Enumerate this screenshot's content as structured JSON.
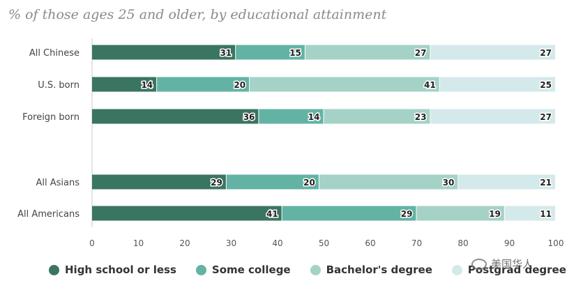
{
  "subtitle": "% of those ages 25 and older, by educational attainment",
  "watermark": "美国华人",
  "chart_data": {
    "type": "bar",
    "orientation": "horizontal",
    "stacked": true,
    "title": "% of those ages 25 and older, by educational attainment",
    "categories": [
      "All Chinese",
      "U.S. born",
      "Foreign born",
      "All Asians",
      "All Americans"
    ],
    "series": [
      {
        "name": "High school or less",
        "color": "#3a7562",
        "values": [
          31,
          14,
          36,
          29,
          41
        ]
      },
      {
        "name": "Some college",
        "color": "#63b3a5",
        "values": [
          15,
          20,
          14,
          20,
          29
        ]
      },
      {
        "name": "Bachelor's degree",
        "color": "#a5d2c7",
        "values": [
          27,
          41,
          23,
          30,
          19
        ]
      },
      {
        "name": "Postgrad degree",
        "color": "#d4e9ea",
        "values": [
          27,
          25,
          27,
          21,
          11
        ]
      }
    ],
    "xlim": [
      0,
      100
    ],
    "xticks": [
      0,
      10,
      20,
      30,
      40,
      50,
      60,
      70,
      80,
      90,
      100
    ],
    "xlabel": "",
    "ylabel": "",
    "legend": "bottom"
  }
}
